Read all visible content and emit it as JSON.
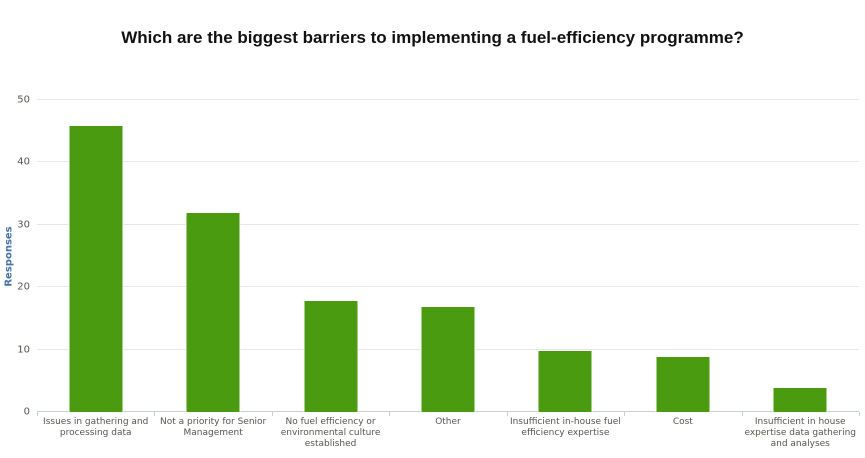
{
  "chart_data": {
    "type": "bar",
    "title": "Which are the biggest barriers to implementing a fuel-efficiency programme?",
    "categories": [
      "Issues in gathering and\nprocessing data",
      "Not a priority for Senior\nManagement",
      "No fuel efficiency or\nenvironmental culture\nestablished",
      "Other",
      "Insufficient in-house fuel\nefficiency expertise",
      "Cost",
      "Insufficient in house\nexpertise data gathering\nand analyses"
    ],
    "values": [
      46,
      32,
      18,
      17,
      10,
      9,
      4
    ],
    "xlabel": "",
    "ylabel": "Responses",
    "ylim": [
      0,
      50
    ],
    "ytick_interval": 10,
    "grid": true,
    "legend": false
  },
  "colors": {
    "bar": "#4a9b10",
    "bar_border": "#ffffff",
    "axis_title": "#4572a7",
    "tick_label": "#555550",
    "gridline": "#e7e7e7",
    "axis_line": "#c7cdd6",
    "title": "#111111",
    "background": "#ffffff"
  }
}
